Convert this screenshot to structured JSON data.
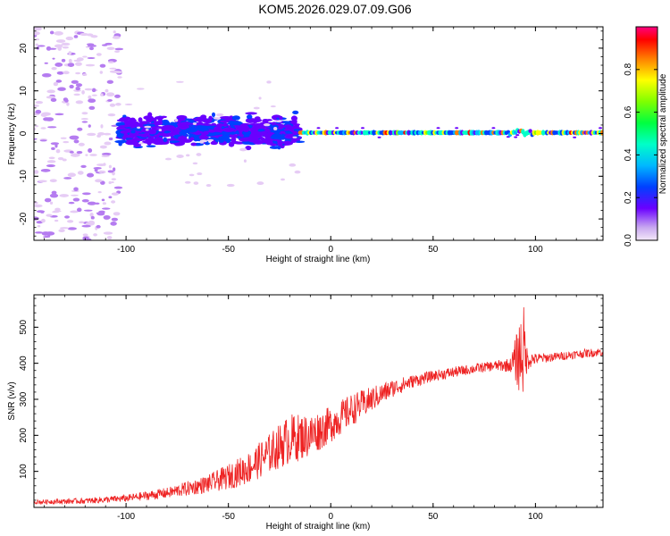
{
  "title": "KOM5.2026.029.07.09.G06",
  "chart_data": [
    {
      "type": "heatmap",
      "xlabel": "Height of straight line (km)",
      "ylabel": "Frequency (Hz)",
      "xlim": [
        -145,
        133
      ],
      "ylim": [
        -25,
        25
      ],
      "xticks": [
        -100,
        -50,
        0,
        50,
        100
      ],
      "yticks": [
        -20,
        -10,
        0,
        10,
        20
      ],
      "colorbar": {
        "label": "Normalized spectral amplitude",
        "range": [
          0,
          1
        ],
        "ticks": [
          0.0,
          0.2,
          0.4,
          0.6,
          0.8
        ],
        "tick_labels": [
          "0.0",
          "0.2",
          "0.4",
          "0.6",
          "0.8"
        ]
      },
      "features": [
        {
          "segment": "scattered noise",
          "x_range": [
            -145,
            -103
          ],
          "freq_spread_hz": 25,
          "amplitude": 0.05
        },
        {
          "segment": "broad band",
          "x_range": [
            -103,
            -15
          ],
          "freq_spread_hz": 4,
          "amplitude": 0.15
        },
        {
          "segment": "narrow line",
          "x_range": [
            -15,
            133
          ],
          "freq_hz": 0,
          "amplitude": 0.7
        }
      ]
    },
    {
      "type": "line",
      "xlabel": "Height of straight line (km)",
      "ylabel": "SNR (v/v)",
      "xlim": [
        -145,
        133
      ],
      "ylim": [
        0,
        590
      ],
      "xticks": [
        -100,
        -50,
        0,
        50,
        100
      ],
      "yticks": [
        100,
        200,
        300,
        400,
        500
      ],
      "series": [
        {
          "name": "SNR",
          "color": "#ee2222",
          "x": [
            -145,
            -120,
            -100,
            -80,
            -60,
            -50,
            -40,
            -30,
            -20,
            -10,
            0,
            10,
            20,
            30,
            40,
            50,
            60,
            70,
            80,
            88,
            92,
            94,
            96,
            100,
            110,
            120,
            133
          ],
          "y": [
            15,
            18,
            25,
            40,
            65,
            85,
            110,
            150,
            190,
            200,
            230,
            270,
            300,
            330,
            350,
            365,
            375,
            385,
            393,
            395,
            420,
            440,
            410,
            412,
            418,
            425,
            432
          ],
          "noise": [
            6,
            8,
            10,
            15,
            25,
            35,
            45,
            55,
            70,
            60,
            50,
            45,
            35,
            25,
            18,
            15,
            15,
            14,
            14,
            20,
            100,
            140,
            30,
            15,
            12,
            12,
            12
          ]
        }
      ]
    }
  ]
}
